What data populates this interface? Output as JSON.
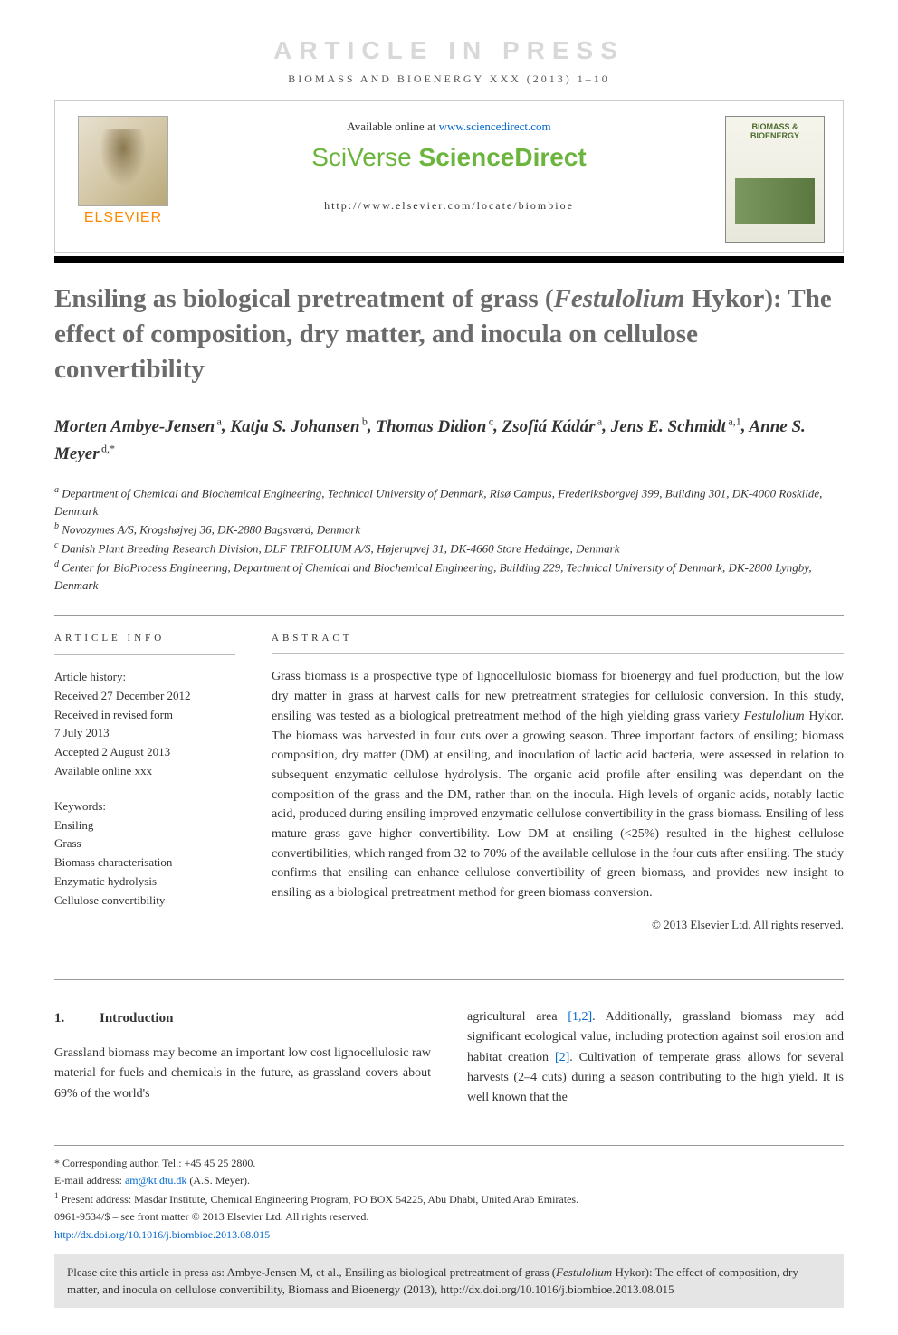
{
  "banner": "ARTICLE IN PRESS",
  "journal_ref": "BIOMASS AND BIOENERGY XXX (2013) 1–10",
  "header": {
    "available_prefix": "Available online at ",
    "available_url": "www.sciencedirect.com",
    "sciverse_prefix": "SciVerse",
    "sciverse_main": " ScienceDirect",
    "journal_url": "http://www.elsevier.com/locate/biombioe",
    "elsevier": "ELSEVIER",
    "cover_title": "BIOMASS & BIOENERGY"
  },
  "title_parts": {
    "pre": "Ensiling as biological pretreatment of grass (",
    "italic": "Festulolium",
    "post": " Hykor): The effect of composition, dry matter, and inocula on cellulose convertibility"
  },
  "authors": [
    {
      "name": "Morten Ambye-Jensen",
      "sup": "a"
    },
    {
      "name": "Katja S. Johansen",
      "sup": "b"
    },
    {
      "name": "Thomas Didion",
      "sup": "c"
    },
    {
      "name": "Zsofiá Kádár",
      "sup": "a"
    },
    {
      "name": "Jens E. Schmidt",
      "sup": "a,1"
    },
    {
      "name": "Anne S. Meyer",
      "sup": "d,*"
    }
  ],
  "affiliations": [
    {
      "sup": "a",
      "text": "Department of Chemical and Biochemical Engineering, Technical University of Denmark, Risø Campus, Frederiksborgvej 399, Building 301, DK-4000 Roskilde, Denmark"
    },
    {
      "sup": "b",
      "text": "Novozymes A/S, Krogshøjvej 36, DK-2880 Bagsværd, Denmark"
    },
    {
      "sup": "c",
      "text": "Danish Plant Breeding Research Division, DLF TRIFOLIUM A/S, Højerupvej 31, DK-4660 Store Heddinge, Denmark"
    },
    {
      "sup": "d",
      "text": "Center for BioProcess Engineering, Department of Chemical and Biochemical Engineering, Building 229, Technical University of Denmark, DK-2800 Lyngby, Denmark"
    }
  ],
  "article_info": {
    "heading": "ARTICLE INFO",
    "history_label": "Article history:",
    "history": [
      "Received 27 December 2012",
      "Received in revised form",
      "7 July 2013",
      "Accepted 2 August 2013",
      "Available online xxx"
    ],
    "keywords_label": "Keywords:",
    "keywords": [
      "Ensiling",
      "Grass",
      "Biomass characterisation",
      "Enzymatic hydrolysis",
      "Cellulose convertibility"
    ]
  },
  "abstract": {
    "heading": "ABSTRACT",
    "text_pre": "Grass biomass is a prospective type of lignocellulosic biomass for bioenergy and fuel production, but the low dry matter in grass at harvest calls for new pretreatment strategies for cellulosic conversion. In this study, ensiling was tested as a biological pretreatment method of the high yielding grass variety ",
    "text_italic": "Festulolium",
    "text_post": " Hykor. The biomass was harvested in four cuts over a growing season. Three important factors of ensiling; biomass composition, dry matter (DM) at ensiling, and inoculation of lactic acid bacteria, were assessed in relation to subsequent enzymatic cellulose hydrolysis. The organic acid profile after ensiling was dependant on the composition of the grass and the DM, rather than on the inocula. High levels of organic acids, notably lactic acid, produced during ensiling improved enzymatic cellulose convertibility in the grass biomass. Ensiling of less mature grass gave higher convertibility. Low DM at ensiling (<25%) resulted in the highest cellulose convertibilities, which ranged from 32 to 70% of the available cellulose in the four cuts after ensiling. The study confirms that ensiling can enhance cellulose convertibility of green biomass, and provides new insight to ensiling as a biological pretreatment method for green biomass conversion.",
    "copyright": "© 2013 Elsevier Ltd. All rights reserved."
  },
  "intro": {
    "num": "1.",
    "title": "Introduction",
    "col1": "Grassland biomass may become an important low cost lignocellulosic raw material for fuels and chemicals in the future, as grassland covers about 69% of the world's",
    "col2_pre": "agricultural area ",
    "ref1": "[1,2]",
    "col2_mid": ". Additionally, grassland biomass may add significant ecological value, including protection against soil erosion and habitat creation ",
    "ref2": "[2]",
    "col2_post": ". Cultivation of temperate grass allows for several harvests (2–4 cuts) during a season contributing to the high yield. It is well known that the"
  },
  "footer": {
    "corr_label": "* Corresponding author.",
    "corr_tel": " Tel.: +45 45 25 2800.",
    "email_label": "E-mail address: ",
    "email": "am@kt.dtu.dk",
    "email_suffix": " (A.S. Meyer).",
    "present_sup": "1",
    "present": " Present address: Masdar Institute, Chemical Engineering Program, PO BOX 54225, Abu Dhabi, United Arab Emirates.",
    "issn": "0961-9534/$ – see front matter © 2013 Elsevier Ltd. All rights reserved.",
    "doi": "http://dx.doi.org/10.1016/j.biombioe.2013.08.015"
  },
  "cite": {
    "pre": "Please cite this article in press as: Ambye-Jensen M, et al., Ensiling as biological pretreatment of grass (",
    "italic": "Festulolium",
    "post": " Hykor): The effect of composition, dry matter, and inocula on cellulose convertibility, Biomass and Bioenergy (2013), http://dx.doi.org/10.1016/j.biombioe.2013.08.015"
  },
  "colors": {
    "link": "#0066cc",
    "sciverse": "#6bb53d",
    "elsevier": "#ff8800",
    "title": "#6b6b6b",
    "citebox": "#e5e5e5"
  }
}
